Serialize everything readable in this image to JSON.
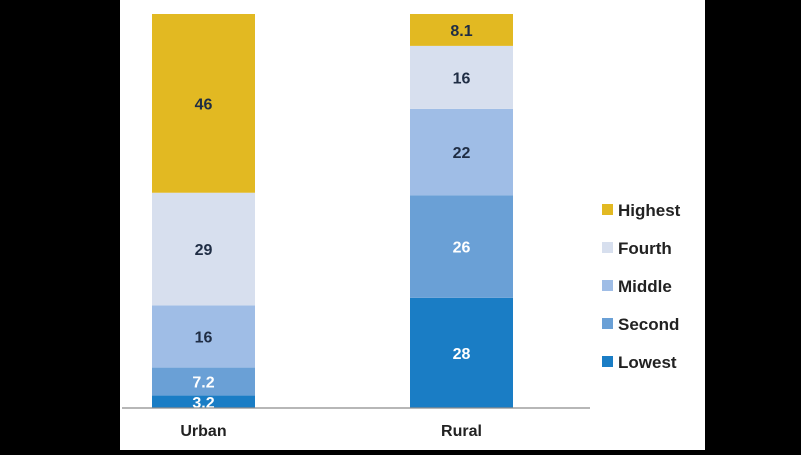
{
  "chart_data": {
    "type": "bar",
    "stacked": true,
    "categories": [
      "Urban",
      "Rural"
    ],
    "series": [
      {
        "name": "Lowest",
        "color": "#1a7dc5",
        "label_color": "#ffffff",
        "values": [
          3.2,
          28
        ]
      },
      {
        "name": "Second",
        "color": "#6aa0d6",
        "label_color": "#ffffff",
        "values": [
          7.2,
          26
        ]
      },
      {
        "name": "Middle",
        "color": "#9fbde6",
        "label_color": "#1f2d44",
        "values": [
          16,
          22
        ]
      },
      {
        "name": "Fourth",
        "color": "#d7dfee",
        "label_color": "#1f2d44",
        "values": [
          29,
          16
        ]
      },
      {
        "name": "Highest",
        "color": "#e2b922",
        "label_color": "#1f2d44",
        "values": [
          46,
          8.1
        ]
      }
    ],
    "title": "",
    "xlabel": "",
    "ylabel": "",
    "grid": false,
    "legend_position": "right"
  }
}
